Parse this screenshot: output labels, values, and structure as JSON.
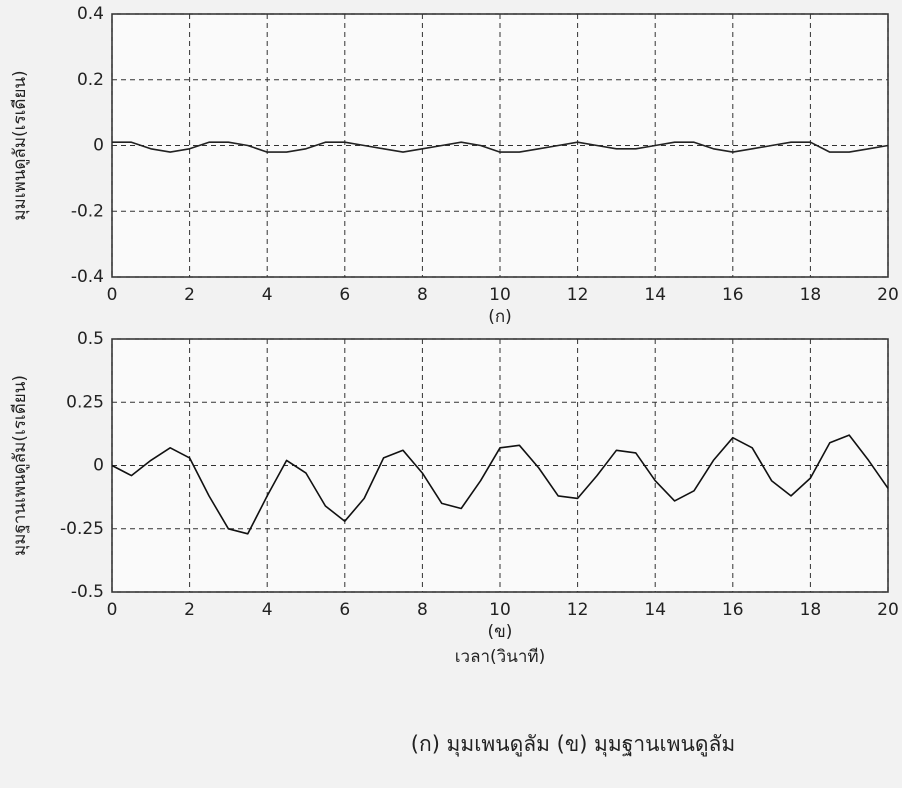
{
  "chart_data": [
    {
      "type": "line",
      "ylabel": "มุมเพนดูลัม(เรเดียน)",
      "subtitle": "(ก)",
      "color": "#222222",
      "grid": true,
      "xlim": [
        0,
        20
      ],
      "xticks": [
        0,
        2,
        4,
        6,
        8,
        10,
        12,
        14,
        16,
        18,
        20
      ],
      "ylim": [
        -0.4,
        0.4
      ],
      "yticks": [
        -0.4,
        -0.2,
        0,
        0.2,
        0.4
      ],
      "x": [
        0,
        0.5,
        1,
        1.5,
        2,
        2.5,
        3,
        3.5,
        4,
        4.5,
        5,
        5.5,
        6,
        6.5,
        7,
        7.5,
        8,
        8.5,
        9,
        9.5,
        10,
        10.5,
        11,
        11.5,
        12,
        12.5,
        13,
        13.5,
        14,
        14.5,
        15,
        15.5,
        16,
        16.5,
        17,
        17.5,
        18,
        18.5,
        19,
        19.5,
        20
      ],
      "values": [
        0.01,
        0.01,
        -0.01,
        -0.02,
        -0.01,
        0.01,
        0.01,
        0,
        -0.02,
        -0.02,
        -0.01,
        0.01,
        0.01,
        0,
        -0.01,
        -0.02,
        -0.01,
        0,
        0.01,
        0,
        -0.02,
        -0.02,
        -0.01,
        0,
        0.01,
        0,
        -0.01,
        -0.01,
        0,
        0.01,
        0.01,
        -0.01,
        -0.02,
        -0.01,
        0,
        0.01,
        0.01,
        -0.02,
        -0.02,
        -0.01,
        0
      ]
    },
    {
      "type": "line",
      "ylabel": "มุมฐานเพนดูลัม(เรเดียน)",
      "subtitle": "(ข)",
      "xlabel": "เวลา(วินาที)",
      "color": "#111111",
      "grid": true,
      "xlim": [
        0,
        20
      ],
      "xticks": [
        0,
        2,
        4,
        6,
        8,
        10,
        12,
        14,
        16,
        18,
        20
      ],
      "ylim": [
        -0.5,
        0.5
      ],
      "yticks": [
        -0.5,
        -0.25,
        0,
        0.25,
        0.5
      ],
      "x": [
        0,
        0.5,
        1,
        1.5,
        2,
        2.5,
        3,
        3.5,
        4,
        4.5,
        5,
        5.5,
        6,
        6.5,
        7,
        7.5,
        8,
        8.5,
        9,
        9.5,
        10,
        10.5,
        11,
        11.5,
        12,
        12.5,
        13,
        13.5,
        14,
        14.5,
        15,
        15.5,
        16,
        16.5,
        17,
        17.5,
        18,
        18.5,
        19,
        19.5,
        20
      ],
      "values": [
        0,
        -0.04,
        0.02,
        0.07,
        0.03,
        -0.12,
        -0.25,
        -0.27,
        -0.12,
        0.02,
        -0.03,
        -0.16,
        -0.22,
        -0.13,
        0.03,
        0.06,
        -0.03,
        -0.15,
        -0.17,
        -0.06,
        0.07,
        0.08,
        -0.01,
        -0.12,
        -0.13,
        -0.04,
        0.06,
        0.05,
        -0.06,
        -0.14,
        -0.1,
        0.02,
        0.11,
        0.07,
        -0.06,
        -0.12,
        -0.05,
        0.09,
        0.12,
        0.02,
        -0.09
      ]
    }
  ],
  "caption": "(ก) มุมเพนดูลัม   (ข) มุมฐานเพนดูลัม"
}
